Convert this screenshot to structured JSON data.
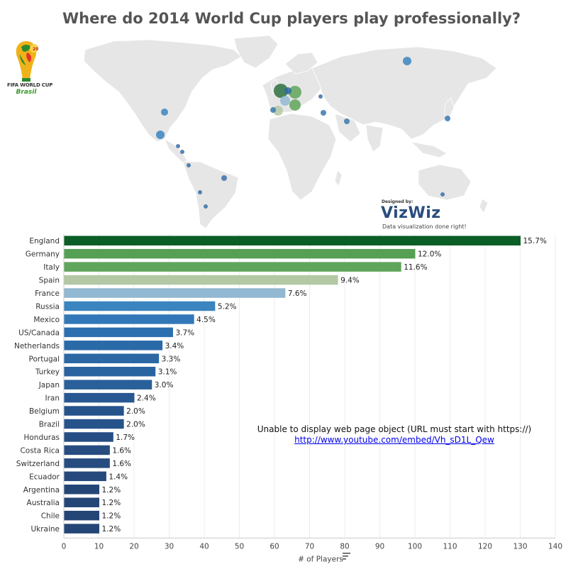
{
  "title": "Where do 2014 World Cup players play professionally?",
  "logo": {
    "line1": "FIFA WORLD CUP",
    "line2": "Brasil"
  },
  "credit": {
    "designed_by": "Designed by:",
    "brand": "VizWiz",
    "tagline": "Data visualization done right!"
  },
  "embed": {
    "message": "Unable to display web page object (URL must start with https://)",
    "link": "http://www.youtube.com/embed/Vh_sD1L_Qew"
  },
  "chart_data": {
    "type": "bar",
    "orientation": "horizontal",
    "xlabel": "# of Players",
    "xlim": [
      0,
      140
    ],
    "xticks": [
      0,
      10,
      20,
      30,
      40,
      50,
      60,
      70,
      80,
      90,
      100,
      110,
      120,
      130,
      140
    ],
    "grid": true,
    "categories": [
      "England",
      "Germany",
      "Italy",
      "Spain",
      "France",
      "Russia",
      "Mexico",
      "US/Canada",
      "Netherlands",
      "Portugal",
      "Turkey",
      "Japan",
      "Iran",
      "Belgium",
      "Brazil",
      "Honduras",
      "Costa Rica",
      "Switzerland",
      "Ecuador",
      "Argentina",
      "Australia",
      "Chile",
      "Ukraine"
    ],
    "values": [
      130,
      100,
      96,
      78,
      63,
      43,
      37,
      31,
      28,
      27,
      26,
      25,
      20,
      17,
      17,
      14,
      13,
      13,
      12,
      10,
      10,
      10,
      10
    ],
    "labels": [
      "15.7%",
      "12.0%",
      "11.6%",
      "9.4%",
      "7.6%",
      "5.2%",
      "4.5%",
      "3.7%",
      "3.4%",
      "3.3%",
      "3.1%",
      "3.0%",
      "2.4%",
      "2.0%",
      "2.0%",
      "1.7%",
      "1.6%",
      "1.6%",
      "1.4%",
      "1.2%",
      "1.2%",
      "1.2%",
      "1.2%"
    ],
    "colors": [
      "#0b5e26",
      "#55a055",
      "#5fa55b",
      "#b3c8a4",
      "#92b8d2",
      "#3a84bf",
      "#3278b8",
      "#2c6fb0",
      "#2b6aa8",
      "#2b68a4",
      "#2a64a0",
      "#2a609a",
      "#285892",
      "#27538b",
      "#27538b",
      "#264e84",
      "#264c80",
      "#264c80",
      "#25497c",
      "#244676",
      "#244676",
      "#244676",
      "#244676"
    ]
  },
  "map_data": {
    "points": [
      {
        "name": "England",
        "color": "#2d7040",
        "size": 10
      },
      {
        "name": "Germany",
        "color": "#5fa55b",
        "size": 9
      },
      {
        "name": "Italy",
        "color": "#5fa55b",
        "size": 8
      },
      {
        "name": "Spain",
        "color": "#b3c8a4",
        "size": 7
      },
      {
        "name": "France",
        "color": "#92b8d2",
        "size": 7
      },
      {
        "name": "Netherlands",
        "color": "#2b6aa8",
        "size": 5
      },
      {
        "name": "Russia",
        "color": "#3a84bf",
        "size": 6
      },
      {
        "name": "US/Canada",
        "color": "#3a84bf",
        "size": 5
      },
      {
        "name": "Mexico",
        "color": "#3a84bf",
        "size": 6
      },
      {
        "name": "Japan",
        "color": "#3a78b0",
        "size": 4
      },
      {
        "name": "Turkey",
        "color": "#3a78b0",
        "size": 4
      },
      {
        "name": "Iran",
        "color": "#3a78b0",
        "size": 4
      },
      {
        "name": "Ukraine",
        "color": "#3a6ea8",
        "size": 3
      },
      {
        "name": "Portugal",
        "color": "#3a78b0",
        "size": 4
      },
      {
        "name": "Honduras",
        "color": "#3a6ea8",
        "size": 3
      },
      {
        "name": "Costa Rica",
        "color": "#3a6ea8",
        "size": 3
      },
      {
        "name": "Ecuador",
        "color": "#3a6ea8",
        "size": 3
      },
      {
        "name": "Brazil",
        "color": "#3a6ea8",
        "size": 4
      },
      {
        "name": "Chile",
        "color": "#3a6ea8",
        "size": 3
      },
      {
        "name": "Argentina",
        "color": "#3a6ea8",
        "size": 3
      },
      {
        "name": "Australia",
        "color": "#3a6ea8",
        "size": 3
      }
    ]
  }
}
